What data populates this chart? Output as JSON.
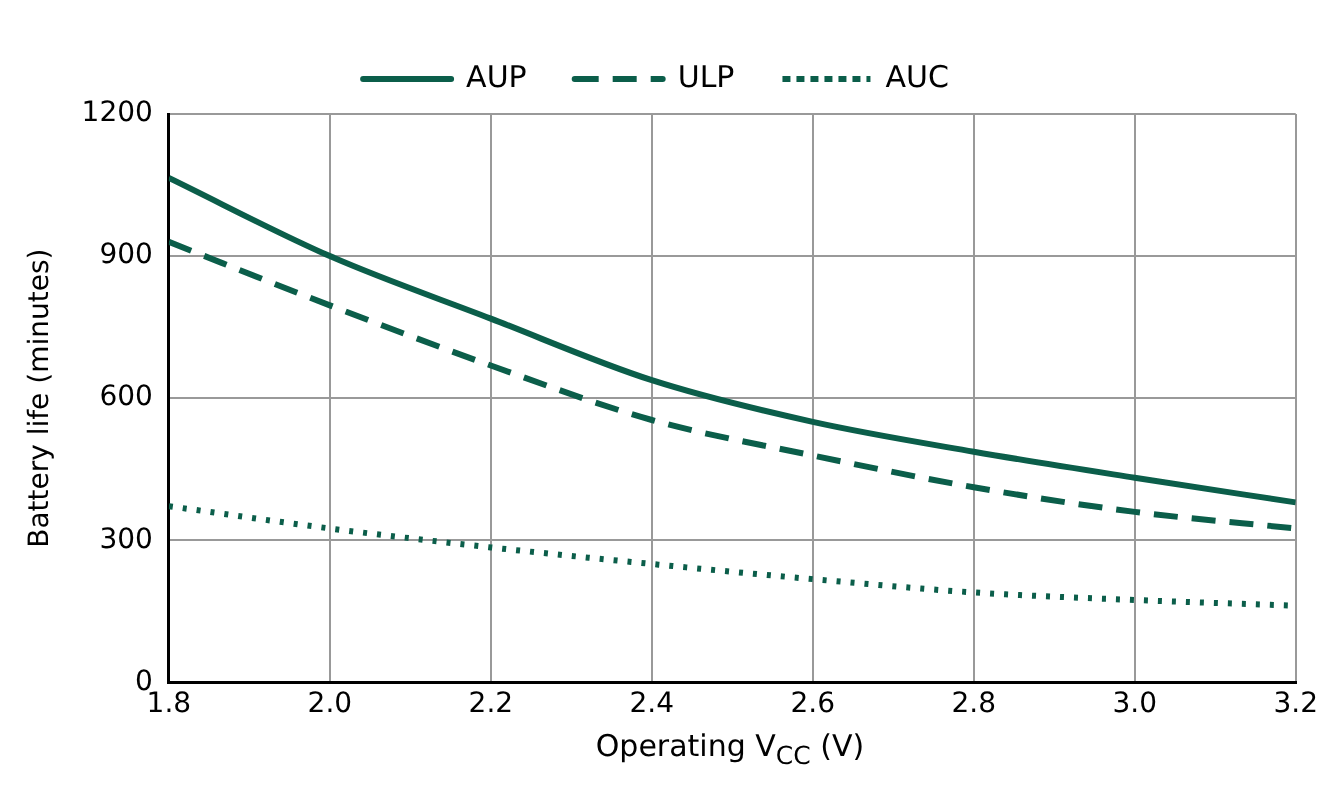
{
  "chart_data": {
    "type": "line",
    "xlabel": "Operating V$_{CC}$ (V)",
    "ylabel": "Battery life (minutes)",
    "x": [
      1.8,
      2.0,
      2.2,
      2.4,
      2.6,
      2.8,
      3.0,
      3.2
    ],
    "series": [
      {
        "name": "AUP",
        "color": "#0b5e4a",
        "line_style": "solid",
        "values": [
          1065,
          900,
          768,
          638,
          550,
          487,
          432,
          380
        ]
      },
      {
        "name": "ULP",
        "color": "#0b5e4a",
        "line_style": "dashed",
        "values": [
          930,
          796,
          669,
          554,
          479,
          412,
          360,
          325
        ]
      },
      {
        "name": "AUC",
        "color": "#0b5e4a",
        "line_style": "dotted",
        "values": [
          372,
          325,
          285,
          250,
          218,
          190,
          174,
          162
        ]
      }
    ],
    "xlim": [
      1.8,
      3.2
    ],
    "xticks": [
      1.8,
      {
        "value": 2,
        "label": "2.0"
      },
      2.2,
      2.4,
      2.6,
      2.8,
      {
        "value": 3,
        "label": "3.0"
      },
      3.2
    ],
    "ylim": [
      0,
      1200
    ],
    "yticks": [
      0,
      300,
      600,
      900,
      1200
    ],
    "grid": true,
    "legend": "top",
    "marker": "none"
  }
}
